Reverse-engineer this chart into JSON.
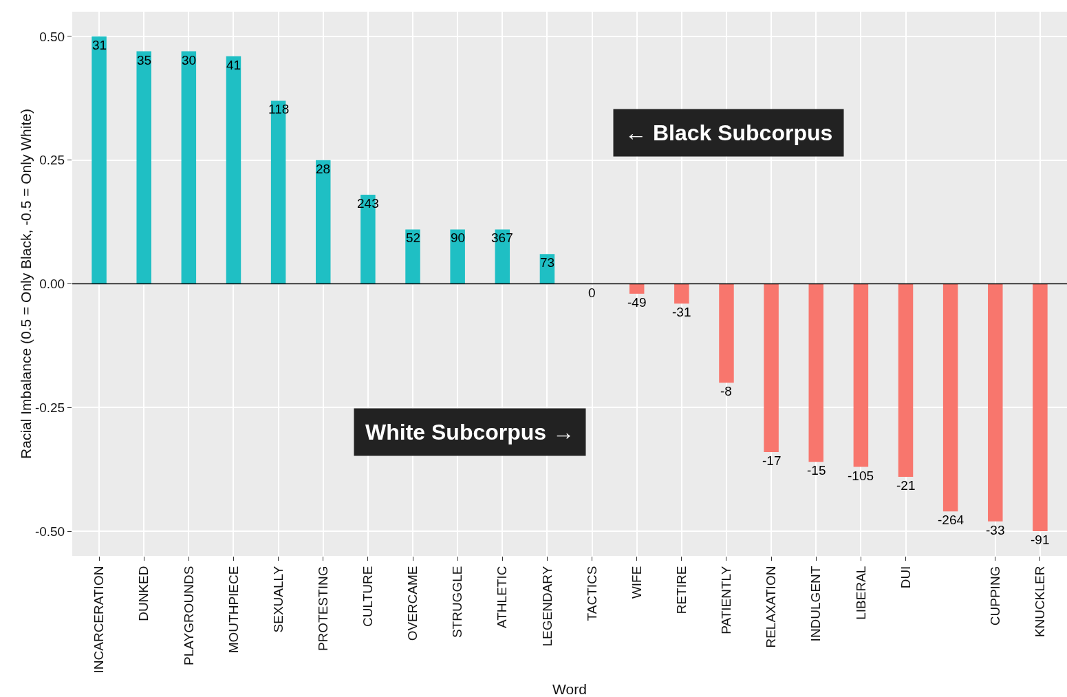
{
  "chart_data": {
    "type": "bar",
    "xlabel": "Word",
    "ylabel": "Racial Imbalance (0.5 = Only Black, -0.5 = Only White)",
    "categories": [
      "INCARCERATION",
      "DUNKED",
      "PLAYGROUNDS",
      "MOUTHPIECE",
      "SEXUALLY",
      "PROTESTING",
      "CULTURE",
      "OVERCAME",
      "STRUGGLE",
      "ATHLETIC",
      "LEGENDARY",
      "TACTICS",
      "WIFE",
      "RETIRE",
      "PATIENTLY",
      "RELAXATION",
      "INDULGENT",
      "LIBERAL",
      "DUI",
      null,
      "CUPPING",
      "KNUCKLER"
    ],
    "values": [
      0.5,
      0.47,
      0.47,
      0.46,
      0.37,
      0.25,
      0.18,
      0.11,
      0.11,
      0.11,
      0.06,
      0,
      -0.02,
      -0.04,
      -0.2,
      -0.34,
      -0.36,
      -0.37,
      -0.39,
      -0.46,
      -0.48,
      -0.5
    ],
    "colors": [
      "#1fbfc4",
      "#1fbfc4",
      "#1fbfc4",
      "#1fbfc4",
      "#1fbfc4",
      "#1fbfc4",
      "#1fbfc4",
      "#1fbfc4",
      "#1fbfc4",
      "#1fbfc4",
      "#1fbfc4",
      "#1fbfc4",
      "#f8766d",
      "#f8766d",
      "#f8766d",
      "#f8766d",
      "#f8766d",
      "#f8766d",
      "#f8766d",
      "#f8766d",
      "#f8766d",
      "#f8766d"
    ],
    "ylim": [
      -0.55,
      0.55
    ],
    "yticks": [
      {
        "value": -0.5,
        "label": "-0.50"
      },
      {
        "value": -0.25,
        "label": "-0.25"
      },
      {
        "value": 0,
        "label": "0.00"
      },
      {
        "value": 0.25,
        "label": "0.25"
      },
      {
        "value": 0.5,
        "label": "0.50"
      }
    ],
    "grid": true,
    "ref_lines": [
      {
        "axis": "y",
        "value": 0,
        "color": "#000000"
      }
    ],
    "annotations": [
      {
        "text": "31",
        "x": "INCARCERATION",
        "y": 0.5
      },
      {
        "text": "35",
        "x": "DUNKED",
        "y": 0.47
      },
      {
        "text": "30",
        "x": "PLAYGROUNDS",
        "y": 0.47
      },
      {
        "text": "41",
        "x": "MOUTHPIECE",
        "y": 0.46
      },
      {
        "text": "118",
        "x": "SEXUALLY",
        "y": 0.37
      },
      {
        "text": "28",
        "x": "PROTESTING",
        "y": 0.25
      },
      {
        "text": "243",
        "x": "CULTURE",
        "y": 0.18
      },
      {
        "text": "52",
        "x": "OVERCAME",
        "y": 0.11
      },
      {
        "text": "90",
        "x": "STRUGGLE",
        "y": 0.11
      },
      {
        "text": "367",
        "x": "ATHLETIC",
        "y": 0.11
      },
      {
        "text": "73",
        "x": "LEGENDARY",
        "y": 0.06
      },
      {
        "text": "0",
        "x": "TACTICS",
        "y": 0
      },
      {
        "text": "-49",
        "x": "WIFE",
        "y": -0.02
      },
      {
        "text": "-31",
        "x": "RETIRE",
        "y": -0.04
      },
      {
        "text": "-8",
        "x": "PATIENTLY",
        "y": -0.2
      },
      {
        "text": "-17",
        "x": "RELAXATION",
        "y": -0.34
      },
      {
        "text": "-15",
        "x": "INDULGENT",
        "y": -0.36
      },
      {
        "text": "-105",
        "x": "LIBERAL",
        "y": -0.37
      },
      {
        "text": "-21",
        "x": "DUI",
        "y": -0.39
      },
      {
        "text": "-264",
        "y": -0.46
      },
      {
        "text": "-33",
        "x": "CUPPING",
        "y": -0.48
      },
      {
        "text": "-91",
        "x": "KNUCKLER",
        "y": -0.5
      },
      "← Black Subcorpus",
      "White Subcorpus →"
    ]
  }
}
